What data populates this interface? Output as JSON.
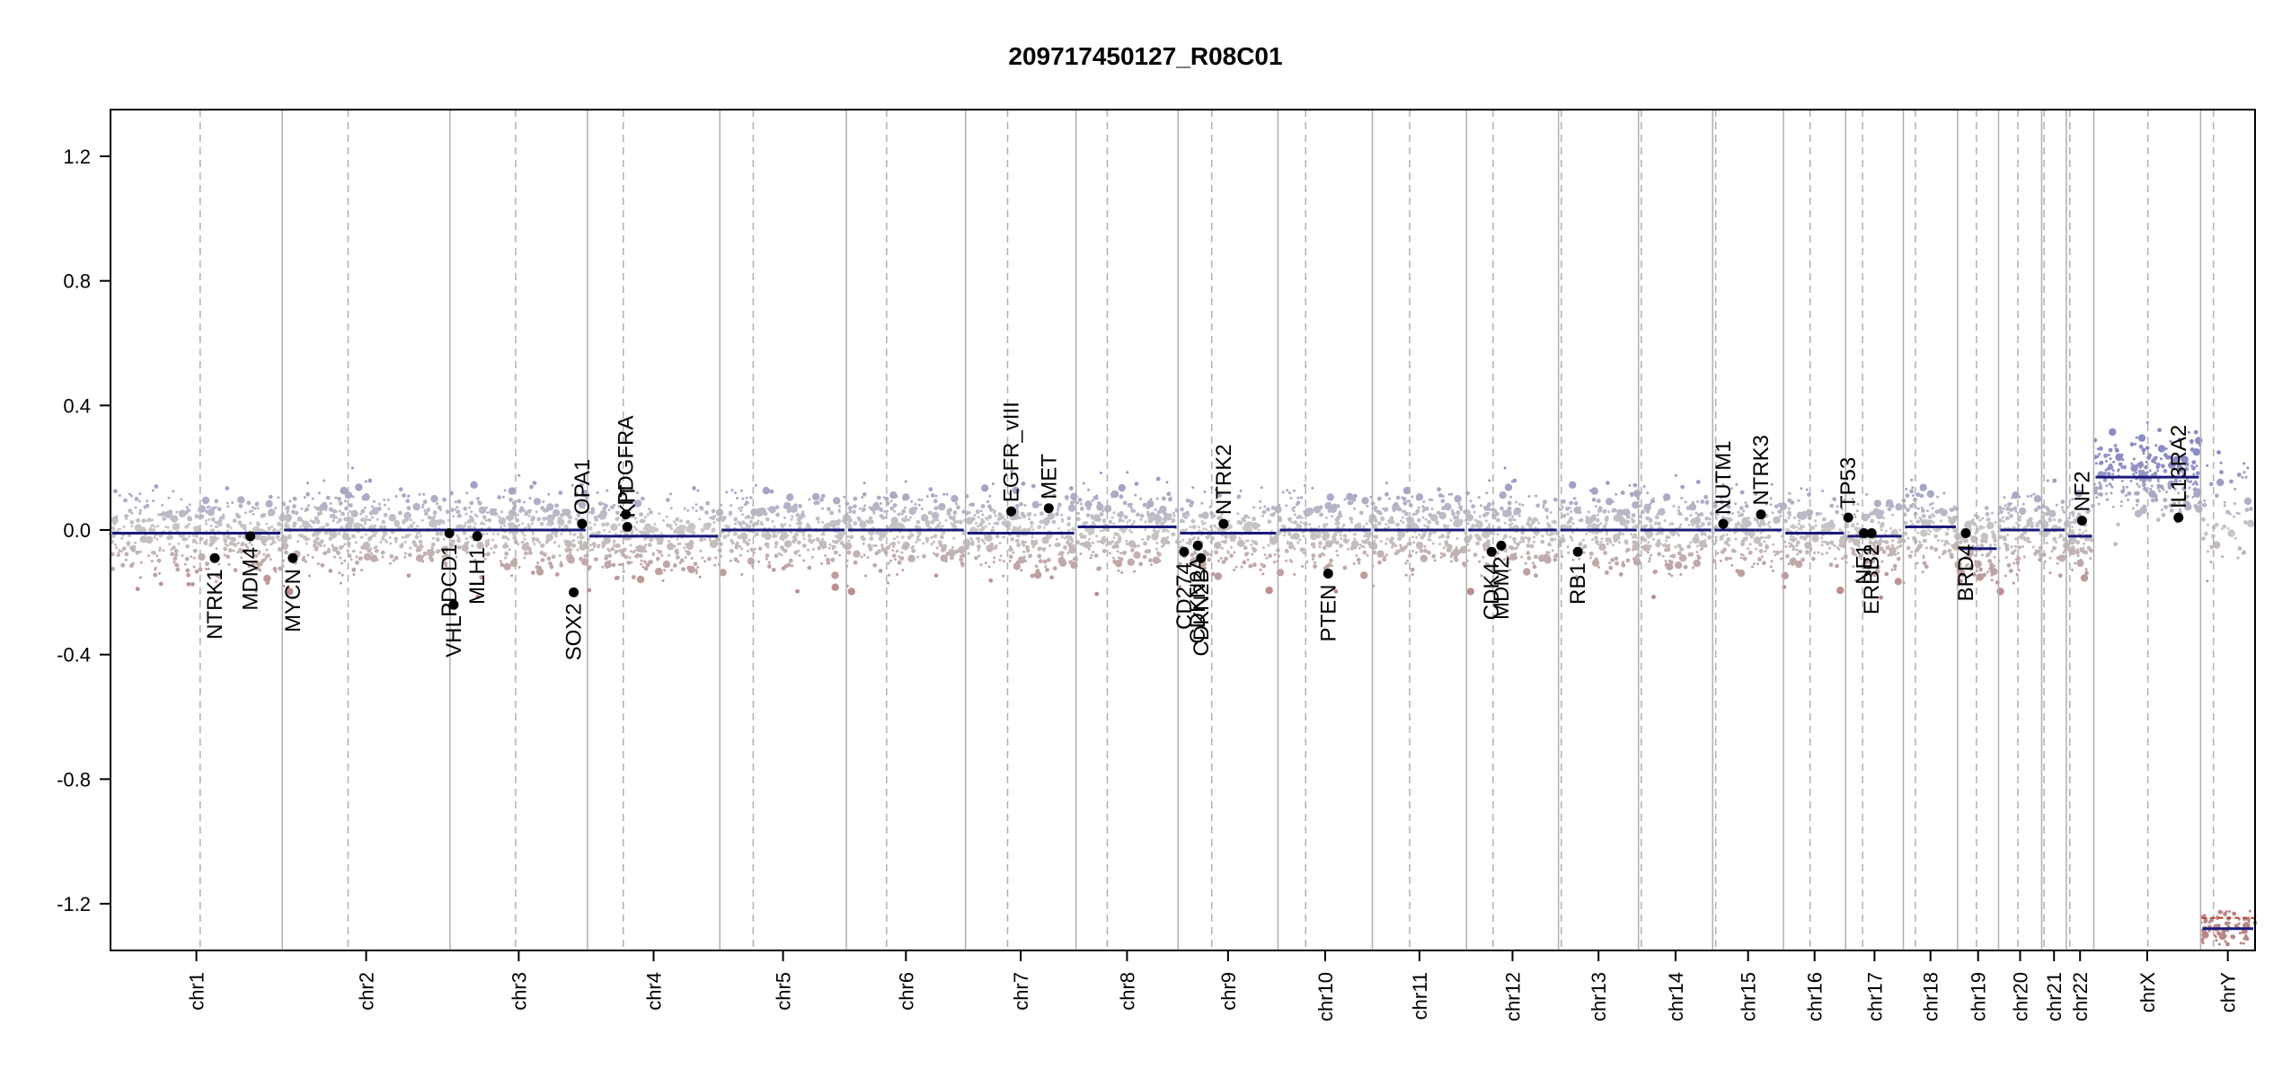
{
  "chart_data": {
    "type": "scatter",
    "title": "209717450127_R08C01",
    "xlabel": "",
    "ylabel": "",
    "ylim": [
      -1.35,
      1.35
    ],
    "y_ticks": [
      1.2,
      0.8,
      0.4,
      0.0,
      -0.4,
      -0.8,
      -1.2
    ],
    "y_tick_labels": [
      "1.2",
      "0.8",
      "0.4",
      "0.0",
      "-0.4",
      "-0.8",
      "-1.2"
    ],
    "colors": {
      "gain": "#8a8cc4",
      "loss": "#b98786",
      "neutral": "#c8c8c8",
      "segment": "#1a1a7a",
      "segment_y_loss": "#c0392b",
      "separator": "#b0b0b0",
      "gene_dot": "#000000"
    },
    "chromosomes": [
      {
        "name": "chr1",
        "start": 0.0,
        "end": 0.0801,
        "centromere": 0.0418
      },
      {
        "name": "chr2",
        "start": 0.0801,
        "end": 0.1583,
        "centromere": 0.1108
      },
      {
        "name": "chr3",
        "start": 0.1583,
        "end": 0.2224,
        "centromere": 0.1889
      },
      {
        "name": "chr4",
        "start": 0.2224,
        "end": 0.2841,
        "centromere": 0.2391
      },
      {
        "name": "chr5",
        "start": 0.2841,
        "end": 0.3431,
        "centromere": 0.2997
      },
      {
        "name": "chr6",
        "start": 0.3431,
        "end": 0.3987,
        "centromere": 0.3619
      },
      {
        "name": "chr7",
        "start": 0.3987,
        "end": 0.4502,
        "centromere": 0.4183
      },
      {
        "name": "chr8",
        "start": 0.4502,
        "end": 0.4978,
        "centromere": 0.4648
      },
      {
        "name": "chr9",
        "start": 0.4978,
        "end": 0.5444,
        "centromere": 0.5135
      },
      {
        "name": "chr10",
        "start": 0.5444,
        "end": 0.5884,
        "centromere": 0.5573
      },
      {
        "name": "chr11",
        "start": 0.5884,
        "end": 0.6323,
        "centromere": 0.6058
      },
      {
        "name": "chr12",
        "start": 0.6323,
        "end": 0.6752,
        "centromere": 0.6447
      },
      {
        "name": "chr13",
        "start": 0.6752,
        "end": 0.7125,
        "centromere": 0.6765
      },
      {
        "name": "chr14",
        "start": 0.7125,
        "end": 0.7471,
        "centromere": 0.7138
      },
      {
        "name": "chr15",
        "start": 0.7471,
        "end": 0.7801,
        "centromere": 0.7485
      },
      {
        "name": "chr16",
        "start": 0.7801,
        "end": 0.8091,
        "centromere": 0.7925
      },
      {
        "name": "chr17",
        "start": 0.8091,
        "end": 0.836,
        "centromere": 0.817
      },
      {
        "name": "chr18",
        "start": 0.836,
        "end": 0.8613,
        "centromere": 0.8416
      },
      {
        "name": "chr19",
        "start": 0.8613,
        "end": 0.8804,
        "centromere": 0.8701
      },
      {
        "name": "chr20",
        "start": 0.8804,
        "end": 0.9005,
        "centromere": 0.8894
      },
      {
        "name": "chr21",
        "start": 0.9005,
        "end": 0.912,
        "centromere": 0.9016
      },
      {
        "name": "chr22",
        "start": 0.912,
        "end": 0.9248,
        "centromere": 0.9136
      },
      {
        "name": "chrX",
        "start": 0.9248,
        "end": 0.9746,
        "centromere": 0.95
      },
      {
        "name": "chrY",
        "start": 0.9746,
        "end": 1.0,
        "centromere": 0.9806
      }
    ],
    "segments": [
      {
        "x0": 0.0,
        "x1": 0.0801,
        "y": -0.01
      },
      {
        "x0": 0.0801,
        "x1": 0.1583,
        "y": 0.0
      },
      {
        "x0": 0.1583,
        "x1": 0.2224,
        "y": 0.0
      },
      {
        "x0": 0.2224,
        "x1": 0.2841,
        "y": -0.02
      },
      {
        "x0": 0.2841,
        "x1": 0.3431,
        "y": 0.0
      },
      {
        "x0": 0.3431,
        "x1": 0.3987,
        "y": 0.0
      },
      {
        "x0": 0.3987,
        "x1": 0.4502,
        "y": -0.01
      },
      {
        "x0": 0.4502,
        "x1": 0.4978,
        "y": 0.01
      },
      {
        "x0": 0.4978,
        "x1": 0.5444,
        "y": -0.01
      },
      {
        "x0": 0.5444,
        "x1": 0.5884,
        "y": 0.0
      },
      {
        "x0": 0.5884,
        "x1": 0.6323,
        "y": 0.0
      },
      {
        "x0": 0.6323,
        "x1": 0.6752,
        "y": 0.0
      },
      {
        "x0": 0.6752,
        "x1": 0.7125,
        "y": 0.0
      },
      {
        "x0": 0.7125,
        "x1": 0.7471,
        "y": 0.0
      },
      {
        "x0": 0.7471,
        "x1": 0.7801,
        "y": 0.0
      },
      {
        "x0": 0.7801,
        "x1": 0.8091,
        "y": -0.01
      },
      {
        "x0": 0.8091,
        "x1": 0.836,
        "y": -0.02
      },
      {
        "x0": 0.836,
        "x1": 0.8613,
        "y": 0.01
      },
      {
        "x0": 0.8613,
        "x1": 0.8804,
        "y": -0.06
      },
      {
        "x0": 0.8804,
        "x1": 0.9005,
        "y": 0.0
      },
      {
        "x0": 0.9005,
        "x1": 0.912,
        "y": 0.0
      },
      {
        "x0": 0.912,
        "x1": 0.9248,
        "y": -0.02
      },
      {
        "x0": 0.9248,
        "x1": 0.9746,
        "y": 0.17
      },
      {
        "x0": 0.9746,
        "x1": 1.0,
        "y": -1.28
      }
    ],
    "genes": [
      {
        "name": "NTRK1",
        "x": 0.0486,
        "y": -0.09,
        "side": "below"
      },
      {
        "name": "MDM4",
        "x": 0.0652,
        "y": -0.02,
        "side": "below"
      },
      {
        "name": "MYCN",
        "x": 0.085,
        "y": -0.09,
        "side": "below"
      },
      {
        "name": "VHL",
        "x": 0.16,
        "y": -0.24,
        "side": "below"
      },
      {
        "name": "PDCD1",
        "x": 0.158,
        "y": -0.01,
        "side": "below"
      },
      {
        "name": "MLH1",
        "x": 0.171,
        "y": -0.02,
        "side": "below"
      },
      {
        "name": "SOX2",
        "x": 0.216,
        "y": -0.2,
        "side": "below"
      },
      {
        "name": "OPA1",
        "x": 0.2199,
        "y": 0.02,
        "side": "above"
      },
      {
        "name": "PDGFRA",
        "x": 0.2403,
        "y": 0.05,
        "side": "above"
      },
      {
        "name": "KIT",
        "x": 0.241,
        "y": 0.01,
        "side": "above"
      },
      {
        "name": "EGFR_vIII",
        "x": 0.42,
        "y": 0.06,
        "side": "above"
      },
      {
        "name": "MET",
        "x": 0.4375,
        "y": 0.07,
        "side": "above"
      },
      {
        "name": "CD274",
        "x": 0.5006,
        "y": -0.07,
        "side": "below"
      },
      {
        "name": "CDKN2A",
        "x": 0.507,
        "y": -0.05,
        "side": "below"
      },
      {
        "name": "CDKN2B",
        "x": 0.5085,
        "y": -0.09,
        "side": "below"
      },
      {
        "name": "NTRK2",
        "x": 0.519,
        "y": 0.02,
        "side": "above"
      },
      {
        "name": "PTEN",
        "x": 0.5678,
        "y": -0.14,
        "side": "below"
      },
      {
        "name": "CDK4",
        "x": 0.644,
        "y": -0.07,
        "side": "below"
      },
      {
        "name": "MDM2",
        "x": 0.6485,
        "y": -0.05,
        "side": "below"
      },
      {
        "name": "RB1",
        "x": 0.6842,
        "y": -0.07,
        "side": "below"
      },
      {
        "name": "NUTM1",
        "x": 0.752,
        "y": 0.02,
        "side": "above"
      },
      {
        "name": "NTRK3",
        "x": 0.7696,
        "y": 0.05,
        "side": "above"
      },
      {
        "name": "TP53",
        "x": 0.8103,
        "y": 0.04,
        "side": "above"
      },
      {
        "name": "NF1",
        "x": 0.8176,
        "y": -0.01,
        "side": "below"
      },
      {
        "name": "ERBB2",
        "x": 0.8212,
        "y": -0.01,
        "side": "below"
      },
      {
        "name": "BRD4",
        "x": 0.8651,
        "y": -0.01,
        "side": "below"
      },
      {
        "name": "NF2",
        "x": 0.9193,
        "y": 0.03,
        "side": "above"
      },
      {
        "name": "IL13RA2",
        "x": 0.9643,
        "y": 0.04,
        "side": "above"
      }
    ]
  }
}
